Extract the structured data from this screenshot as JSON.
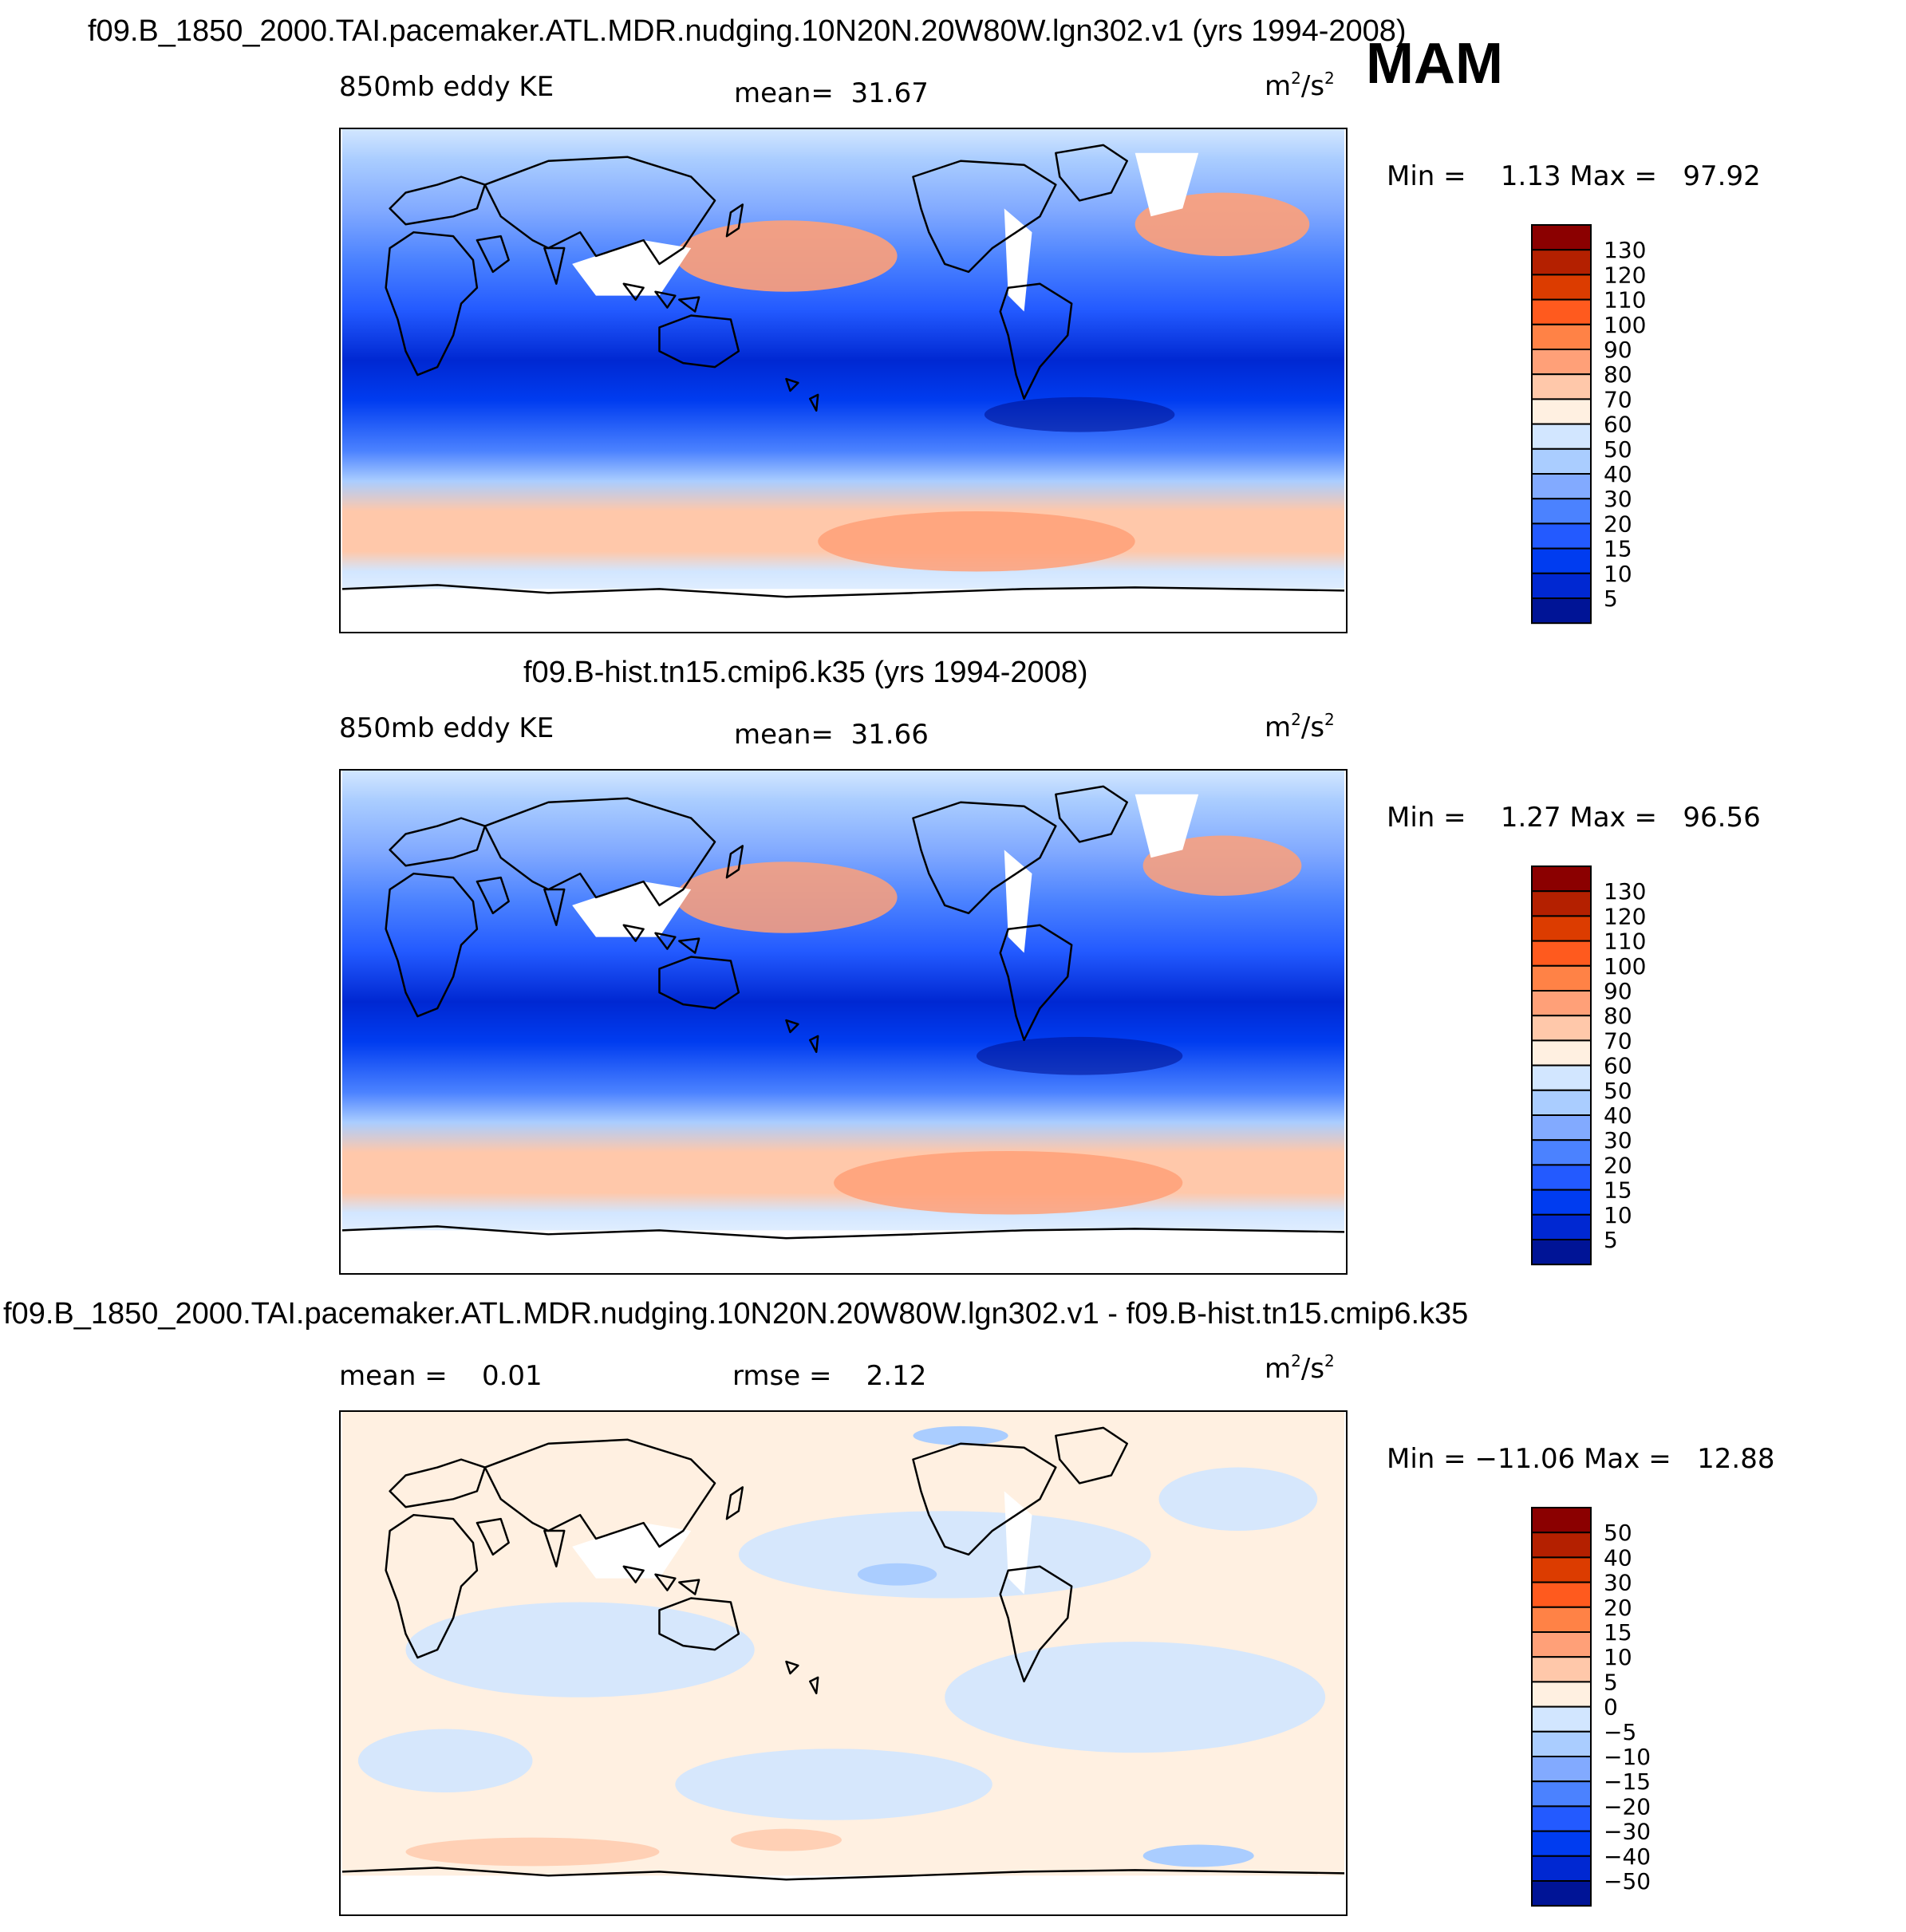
{
  "season": "MAM",
  "units": {
    "base": "m",
    "exp1": "2",
    "mid": "/s",
    "exp2": "2"
  },
  "panels": [
    {
      "id": "panel-1",
      "title": "f09.B_1850_2000.TAI.pacemaker.ATL.MDR.nudging.10N20N.20W80W.lgn302.v1 (yrs 1994-2008)",
      "left_label": "850mb eddy KE",
      "mid_label": "mean=",
      "mid_value": "31.67",
      "min_label": "Min =",
      "min_value": "1.13",
      "max_label": "Max =",
      "max_value": "97.92",
      "legend_ticks": [
        "130",
        "120",
        "110",
        "100",
        "90",
        "80",
        "70",
        "60",
        "50",
        "40",
        "30",
        "20",
        "15",
        "10",
        "5"
      ],
      "legend_colors": [
        "#8b0000",
        "#b42000",
        "#dc3c00",
        "#ff5a1e",
        "#ff8246",
        "#ffa078",
        "#ffc8aa",
        "#fff0e1",
        "#d2e6ff",
        "#aacdff",
        "#82aaff",
        "#4b82ff",
        "#235aff",
        "#003cf0",
        "#0028d2",
        "#001496"
      ]
    },
    {
      "id": "panel-2",
      "title": "f09.B-hist.tn15.cmip6.k35 (yrs 1994-2008)",
      "left_label": "850mb eddy KE",
      "mid_label": "mean=",
      "mid_value": "31.66",
      "min_label": "Min =",
      "min_value": "1.27",
      "max_label": "Max =",
      "max_value": "96.56",
      "legend_ticks": [
        "130",
        "120",
        "110",
        "100",
        "90",
        "80",
        "70",
        "60",
        "50",
        "40",
        "30",
        "20",
        "15",
        "10",
        "5"
      ],
      "legend_colors": [
        "#8b0000",
        "#b42000",
        "#dc3c00",
        "#ff5a1e",
        "#ff8246",
        "#ffa078",
        "#ffc8aa",
        "#fff0e1",
        "#d2e6ff",
        "#aacdff",
        "#82aaff",
        "#4b82ff",
        "#235aff",
        "#003cf0",
        "#0028d2",
        "#001496"
      ]
    },
    {
      "id": "panel-3",
      "title": "f09.B_1850_2000.TAI.pacemaker.ATL.MDR.nudging.10N20N.20W80W.lgn302.v1 - f09.B-hist.tn15.cmip6.k35",
      "left_label": "mean =",
      "left_value": "0.01",
      "mid_label": "rmse =",
      "mid_value": "2.12",
      "min_label": "Min =",
      "min_value": "−11.06",
      "max_label": "Max =",
      "max_value": "12.88",
      "legend_ticks": [
        "50",
        "40",
        "30",
        "20",
        "15",
        "10",
        "5",
        "0",
        "−5",
        "−10",
        "−15",
        "−20",
        "−30",
        "−40",
        "−50"
      ],
      "legend_colors": [
        "#8b0000",
        "#b42000",
        "#dc3c00",
        "#ff5a1e",
        "#ff8246",
        "#ffa078",
        "#ffc8aa",
        "#fff0e1",
        "#d2e6ff",
        "#aacdff",
        "#82aaff",
        "#4b82ff",
        "#235aff",
        "#003cf0",
        "#0028d2",
        "#001496"
      ]
    }
  ]
}
